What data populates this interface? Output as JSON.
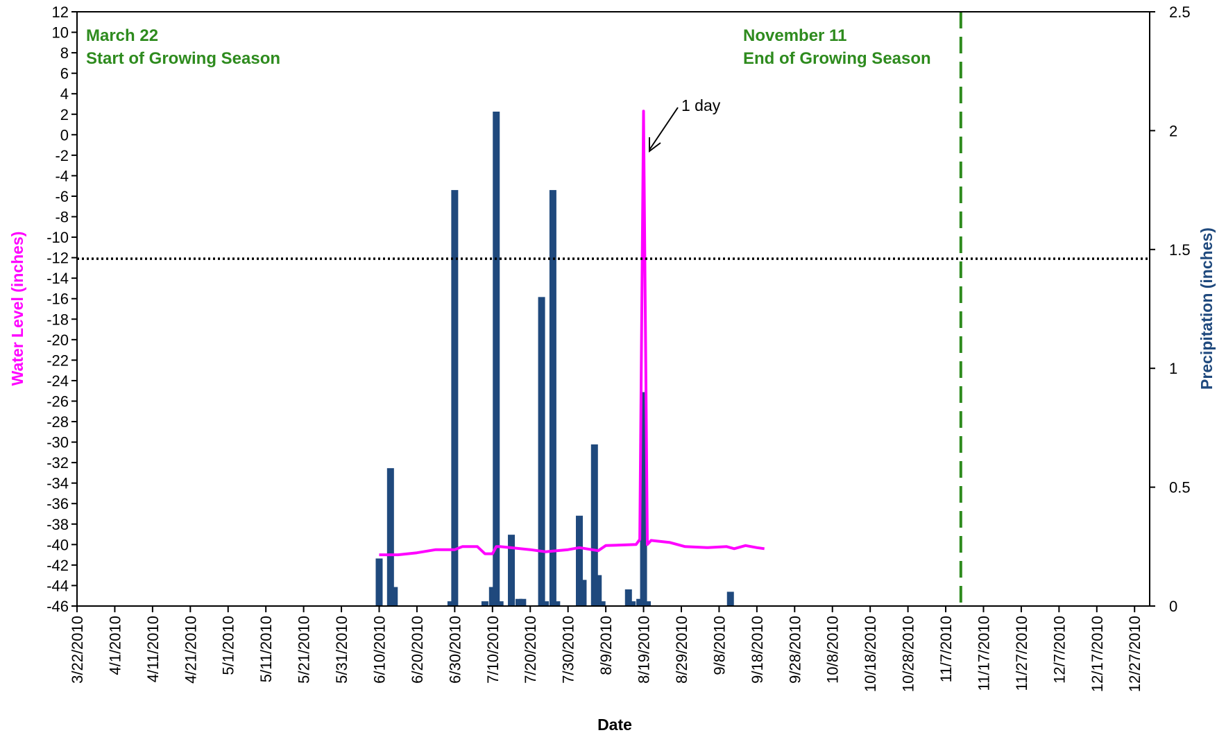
{
  "chart_data": {
    "type": "bar+line",
    "xlabel": "Date",
    "ylabel_left": "Water Level (inches)",
    "ylabel_right": "Precipitation (inches)",
    "y_left_range": [
      -46,
      12
    ],
    "y_right_range": [
      0,
      2.5
    ],
    "x_range": [
      "2010-03-22",
      "2010-12-31"
    ],
    "x_tick_labels": [
      "3/22/2010",
      "4/1/2010",
      "4/11/2010",
      "4/21/2010",
      "5/1/2010",
      "5/11/2010",
      "5/21/2010",
      "5/31/2010",
      "6/10/2010",
      "6/20/2010",
      "6/30/2010",
      "7/10/2010",
      "7/20/2010",
      "7/30/2010",
      "8/9/2010",
      "8/19/2010",
      "8/29/2010",
      "9/8/2010",
      "9/18/2010",
      "9/28/2010",
      "10/8/2010",
      "10/18/2010",
      "10/28/2010",
      "11/7/2010",
      "11/17/2010",
      "11/27/2010",
      "12/7/2010",
      "12/17/2010",
      "12/27/2010"
    ],
    "y_left_ticks": [
      12,
      10,
      8,
      6,
      4,
      2,
      0,
      -2,
      -4,
      -6,
      -8,
      -10,
      -12,
      -14,
      -16,
      -18,
      -20,
      -22,
      -24,
      -26,
      -28,
      -30,
      -32,
      -34,
      -36,
      -38,
      -40,
      -42,
      -44,
      -46
    ],
    "y_right_ticks": [
      2.5,
      2,
      1.5,
      1,
      0.5,
      0
    ],
    "horizontal_reference": -12.1,
    "season_end_date": "2010-11-11",
    "precipitation_series": {
      "name": "Precipitation (inches)",
      "color": "#1f497d",
      "points": [
        [
          "2010-06-10",
          0.2
        ],
        [
          "2010-06-13",
          0.58
        ],
        [
          "2010-06-14",
          0.08
        ],
        [
          "2010-06-29",
          0.02
        ],
        [
          "2010-06-30",
          1.75
        ],
        [
          "2010-07-08",
          0.02
        ],
        [
          "2010-07-10",
          0.08
        ],
        [
          "2010-07-11",
          2.08
        ],
        [
          "2010-07-12",
          0.02
        ],
        [
          "2010-07-15",
          0.3
        ],
        [
          "2010-07-17",
          0.03
        ],
        [
          "2010-07-18",
          0.03
        ],
        [
          "2010-07-23",
          1.3
        ],
        [
          "2010-07-24",
          0.02
        ],
        [
          "2010-07-26",
          1.75
        ],
        [
          "2010-07-27",
          0.02
        ],
        [
          "2010-08-02",
          0.38
        ],
        [
          "2010-08-03",
          0.11
        ],
        [
          "2010-08-06",
          0.68
        ],
        [
          "2010-08-07",
          0.13
        ],
        [
          "2010-08-08",
          0.02
        ],
        [
          "2010-08-15",
          0.07
        ],
        [
          "2010-08-16",
          0.02
        ],
        [
          "2010-08-18",
          0.03
        ],
        [
          "2010-08-19",
          0.9
        ],
        [
          "2010-08-20",
          0.02
        ],
        [
          "2010-09-11",
          0.06
        ]
      ]
    },
    "water_level_series": {
      "name": "Water Level (inches)",
      "color": "#ff00ff",
      "points": [
        [
          "2010-06-10",
          -41
        ],
        [
          "2010-06-15",
          -41
        ],
        [
          "2010-06-20",
          -40.8
        ],
        [
          "2010-06-25",
          -40.5
        ],
        [
          "2010-06-30",
          -40.5
        ],
        [
          "2010-07-02",
          -40.2
        ],
        [
          "2010-07-06",
          -40.2
        ],
        [
          "2010-07-08",
          -40.9
        ],
        [
          "2010-07-10",
          -40.9
        ],
        [
          "2010-07-11",
          -40.2
        ],
        [
          "2010-07-12",
          -40.2
        ],
        [
          "2010-07-20",
          -40.5
        ],
        [
          "2010-07-24",
          -40.7
        ],
        [
          "2010-07-30",
          -40.5
        ],
        [
          "2010-08-02",
          -40.3
        ],
        [
          "2010-08-07",
          -40.6
        ],
        [
          "2010-08-09",
          -40.1
        ],
        [
          "2010-08-17",
          -40
        ],
        [
          "2010-08-18",
          -39.5
        ],
        [
          "2010-08-19",
          2.3
        ],
        [
          "2010-08-20",
          -40
        ],
        [
          "2010-08-21",
          -39.6
        ],
        [
          "2010-08-26",
          -39.8
        ],
        [
          "2010-08-30",
          -40.2
        ],
        [
          "2010-09-05",
          -40.3
        ],
        [
          "2010-09-10",
          -40.2
        ],
        [
          "2010-09-12",
          -40.4
        ],
        [
          "2010-09-15",
          -40.1
        ],
        [
          "2010-09-18",
          -40.3
        ],
        [
          "2010-09-20",
          -40.4
        ]
      ]
    }
  },
  "annotations": {
    "start_date": "March 22",
    "start_label": "Start of Growing Season",
    "end_date": "November 11",
    "end_label": "End of Growing Season",
    "peak_note": "1 day"
  },
  "colors": {
    "water_level": "#ff00ff",
    "precipitation": "#1f497d",
    "season": "#2e8b1e",
    "reference": "#000000"
  }
}
